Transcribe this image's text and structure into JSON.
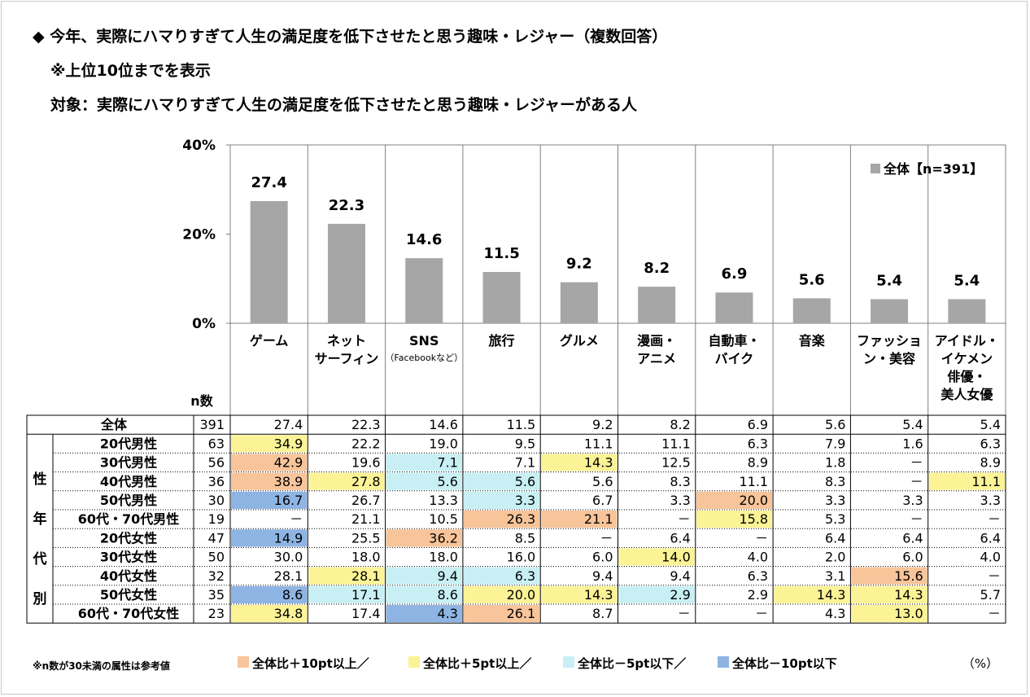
{
  "title": "◆ 今年、実際にハマりすぎて人生の満足度を低下させたと思う趣味・レジャー（複数回答）",
  "note_top": "※上位10位までを表示",
  "target": "対象：実際にハマりすぎて人生の満足度を低下させたと思う趣味・レジャーがある人",
  "legend_top": "全体【n=391】",
  "n_header": "n数",
  "footnote": "※n数が30未満の属性は参考値",
  "unit": "（%）",
  "group_label": [
    "性",
    "年",
    "代",
    "別"
  ],
  "colors": {
    "bar": "#a6a6a6",
    "plus10": "#f8c49a",
    "plus5": "#fbf396",
    "minus5": "#c8f0f4",
    "minus10": "#8eb4e3"
  },
  "legend_bottom": [
    {
      "label": "全体比＋10pt以上／",
      "code": "p10"
    },
    {
      "label": "全体比＋5pt以上／",
      "code": "p5"
    },
    {
      "label": "全体比－5pt以下／",
      "code": "m5"
    },
    {
      "label": "全体比－10pt以下",
      "code": "m10"
    }
  ],
  "chart_data": {
    "type": "bar",
    "ylim": [
      0,
      40
    ],
    "yticks": [
      "0%",
      "20%",
      "40%"
    ],
    "ytick_values": [
      0,
      20,
      40
    ],
    "categories": [
      [
        "ゲーム"
      ],
      [
        "ネット",
        "サーフィン"
      ],
      [
        "SNS",
        "（Facebookなど）"
      ],
      [
        "旅行"
      ],
      [
        "グルメ"
      ],
      [
        "漫画・",
        "アニメ"
      ],
      [
        "自動車・",
        "バイク"
      ],
      [
        "音楽"
      ],
      [
        "ファッショ",
        "ン・美容"
      ],
      [
        "アイドル・",
        "イケメン",
        "俳優・",
        "美人女優"
      ]
    ],
    "series": [
      {
        "name": "全体【n=391】",
        "values": [
          27.4,
          22.3,
          14.6,
          11.5,
          9.2,
          8.2,
          6.9,
          5.6,
          5.4,
          5.4
        ]
      }
    ],
    "value_labels": [
      "27.4",
      "22.3",
      "14.6",
      "11.5",
      "9.2",
      "8.2",
      "6.9",
      "5.6",
      "5.4",
      "5.4"
    ]
  },
  "table": {
    "total": {
      "label": "全体",
      "n": "391",
      "values": [
        "27.4",
        "22.3",
        "14.6",
        "11.5",
        "9.2",
        "8.2",
        "6.9",
        "5.6",
        "5.4",
        "5.4"
      ]
    },
    "rows": [
      {
        "label": "20代男性",
        "n": "63",
        "values": [
          "34.9",
          "22.2",
          "19.0",
          "9.5",
          "11.1",
          "11.1",
          "6.3",
          "7.9",
          "1.6",
          "6.3"
        ],
        "hl": [
          "p5",
          "",
          "",
          "",
          "",
          "",
          "",
          "",
          "",
          ""
        ]
      },
      {
        "label": "30代男性",
        "n": "56",
        "values": [
          "42.9",
          "19.6",
          "7.1",
          "7.1",
          "14.3",
          "12.5",
          "8.9",
          "1.8",
          "－",
          "8.9"
        ],
        "hl": [
          "p10",
          "",
          "m5",
          "",
          "p5",
          "",
          "",
          "",
          "",
          ""
        ]
      },
      {
        "label": "40代男性",
        "n": "36",
        "values": [
          "38.9",
          "27.8",
          "5.6",
          "5.6",
          "5.6",
          "8.3",
          "11.1",
          "8.3",
          "－",
          "11.1"
        ],
        "hl": [
          "p10",
          "p5",
          "m5",
          "m5",
          "",
          "",
          "",
          "",
          "",
          "p5"
        ]
      },
      {
        "label": "50代男性",
        "n": "30",
        "values": [
          "16.7",
          "26.7",
          "13.3",
          "3.3",
          "6.7",
          "3.3",
          "20.0",
          "3.3",
          "3.3",
          "3.3"
        ],
        "hl": [
          "m10",
          "",
          "",
          "m5",
          "",
          "",
          "p10",
          "",
          "",
          ""
        ]
      },
      {
        "label": "60代・70代男性",
        "n": "19",
        "values": [
          "－",
          "21.1",
          "10.5",
          "26.3",
          "21.1",
          "－",
          "15.8",
          "5.3",
          "－",
          "－"
        ],
        "hl": [
          "",
          "",
          "",
          "p10",
          "p10",
          "",
          "p5",
          "",
          "",
          ""
        ]
      },
      {
        "label": "20代女性",
        "n": "47",
        "values": [
          "14.9",
          "25.5",
          "36.2",
          "8.5",
          "－",
          "6.4",
          "－",
          "6.4",
          "6.4",
          "6.4"
        ],
        "hl": [
          "m10",
          "",
          "p10",
          "",
          "",
          "",
          "",
          "",
          "",
          ""
        ]
      },
      {
        "label": "30代女性",
        "n": "50",
        "values": [
          "30.0",
          "18.0",
          "18.0",
          "16.0",
          "6.0",
          "14.0",
          "4.0",
          "2.0",
          "6.0",
          "4.0"
        ],
        "hl": [
          "",
          "",
          "",
          "",
          "",
          "p5",
          "",
          "",
          "",
          ""
        ]
      },
      {
        "label": "40代女性",
        "n": "32",
        "values": [
          "28.1",
          "28.1",
          "9.4",
          "6.3",
          "9.4",
          "9.4",
          "6.3",
          "3.1",
          "15.6",
          "－"
        ],
        "hl": [
          "",
          "p5",
          "m5",
          "m5",
          "",
          "",
          "",
          "",
          "p10",
          ""
        ]
      },
      {
        "label": "50代女性",
        "n": "35",
        "values": [
          "8.6",
          "17.1",
          "8.6",
          "20.0",
          "14.3",
          "2.9",
          "2.9",
          "14.3",
          "14.3",
          "5.7"
        ],
        "hl": [
          "m10",
          "m5",
          "m5",
          "p5",
          "p5",
          "m5",
          "",
          "p5",
          "p5",
          ""
        ]
      },
      {
        "label": "60代・70代女性",
        "n": "23",
        "values": [
          "34.8",
          "17.4",
          "4.3",
          "26.1",
          "8.7",
          "－",
          "－",
          "4.3",
          "13.0",
          "－"
        ],
        "hl": [
          "p5",
          "",
          "m10",
          "p10",
          "",
          "",
          "",
          "",
          "p5",
          ""
        ]
      }
    ]
  }
}
